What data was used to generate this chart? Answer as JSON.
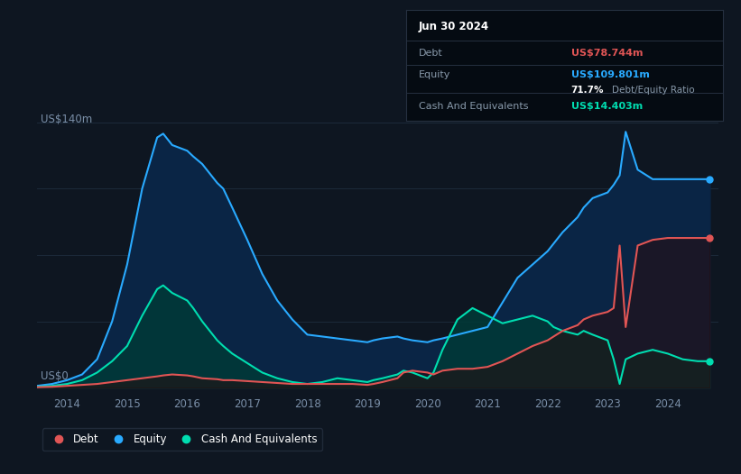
{
  "bg_color": "#0e1621",
  "plot_bg_color": "#0e1621",
  "grid_color": "#1c2a3a",
  "ylabel_text": "US$140m",
  "y0_text": "US$0",
  "xlim_start": 2013.5,
  "xlim_end": 2024.85,
  "ylim_min": -3,
  "ylim_max": 147,
  "debt_color": "#e05555",
  "equity_color": "#29aaff",
  "cash_color": "#00ddb0",
  "equity_fill_color": "#0a2545",
  "cash_fill_color": "#003a38",
  "debt_fill_color": "#2a0a0a",
  "tooltip_bg": "#050b12",
  "tooltip_border": "#253040",
  "tooltip_title": "Jun 30 2024",
  "tooltip_debt_label": "Debt",
  "tooltip_debt_value": "US$78.744m",
  "tooltip_equity_label": "Equity",
  "tooltip_equity_value": "US$109.801m",
  "tooltip_ratio_value": "71.7%",
  "tooltip_ratio_label": "Debt/Equity Ratio",
  "tooltip_cash_label": "Cash And Equivalents",
  "tooltip_cash_value": "US$14.403m",
  "legend_labels": [
    "Debt",
    "Equity",
    "Cash And Equivalents"
  ],
  "years": [
    2013.5,
    2013.75,
    2014.0,
    2014.25,
    2014.5,
    2014.75,
    2015.0,
    2015.25,
    2015.5,
    2015.6,
    2015.75,
    2016.0,
    2016.1,
    2016.25,
    2016.5,
    2016.6,
    2016.75,
    2017.0,
    2017.25,
    2017.5,
    2017.75,
    2018.0,
    2018.25,
    2018.5,
    2018.75,
    2019.0,
    2019.1,
    2019.25,
    2019.5,
    2019.6,
    2019.75,
    2020.0,
    2020.1,
    2020.25,
    2020.5,
    2020.75,
    2021.0,
    2021.25,
    2021.5,
    2021.75,
    2022.0,
    2022.1,
    2022.25,
    2022.5,
    2022.6,
    2022.75,
    2023.0,
    2023.1,
    2023.2,
    2023.3,
    2023.5,
    2023.75,
    2024.0,
    2024.25,
    2024.5,
    2024.7
  ],
  "equity": [
    1,
    2,
    4,
    7,
    15,
    35,
    65,
    105,
    132,
    134,
    128,
    125,
    122,
    118,
    108,
    105,
    95,
    78,
    60,
    46,
    36,
    28,
    27,
    26,
    25,
    24,
    25,
    26,
    27,
    26,
    25,
    24,
    25,
    26,
    28,
    30,
    32,
    45,
    58,
    65,
    72,
    76,
    82,
    90,
    95,
    100,
    103,
    107,
    112,
    135,
    115,
    110,
    110,
    110,
    110,
    110
  ],
  "debt": [
    0.3,
    0.5,
    1,
    1.5,
    2,
    3,
    4,
    5,
    6,
    6.5,
    7,
    6.5,
    6,
    5,
    4.5,
    4,
    4,
    3.5,
    3,
    2.5,
    2,
    2,
    2,
    2,
    2,
    1.5,
    2,
    3,
    5,
    8,
    9,
    8,
    7,
    9,
    10,
    10,
    11,
    14,
    18,
    22,
    25,
    27,
    30,
    33,
    36,
    38,
    40,
    42,
    75,
    32,
    75,
    78,
    79,
    79,
    79,
    79
  ],
  "cash": [
    0.5,
    1,
    2,
    4,
    8,
    14,
    22,
    38,
    52,
    54,
    50,
    46,
    42,
    35,
    25,
    22,
    18,
    13,
    8,
    5,
    3,
    2,
    3,
    5,
    4,
    3,
    4,
    5,
    7,
    9,
    8,
    5,
    8,
    20,
    36,
    42,
    38,
    34,
    36,
    38,
    35,
    32,
    30,
    28,
    30,
    28,
    25,
    15,
    2,
    15,
    18,
    20,
    18,
    15,
    14,
    14
  ],
  "xtick_years": [
    2014,
    2015,
    2016,
    2017,
    2018,
    2019,
    2020,
    2021,
    2022,
    2023,
    2024
  ],
  "gridline_values": [
    35,
    70,
    105,
    140
  ]
}
